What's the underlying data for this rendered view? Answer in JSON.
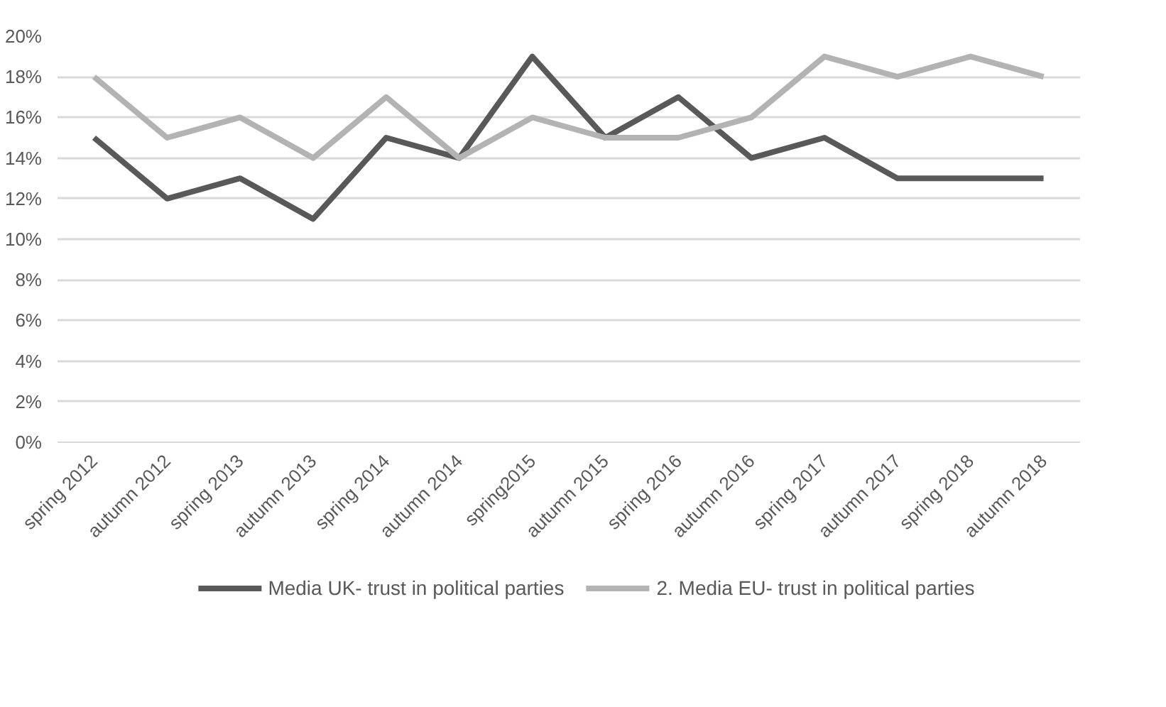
{
  "chart_data": {
    "type": "line",
    "categories": [
      "spring 2012",
      "autumn 2012",
      "spring 2013",
      "autumn 2013",
      "spring 2014",
      "autumn 2014",
      "spring2015",
      "autumn 2015",
      "spring 2016",
      "autumn 2016",
      "spring 2017",
      "autumn 2017",
      "spring 2018",
      "autumn 2018"
    ],
    "series": [
      {
        "name": "Media UK- trust in political parties",
        "color": "#595959",
        "values": [
          15,
          12,
          13,
          11,
          15,
          14,
          19,
          15,
          17,
          14,
          15,
          13,
          13,
          13
        ]
      },
      {
        "name": "2. Media EU- trust in political parties",
        "color": "#b3b3b3",
        "values": [
          18,
          15,
          16,
          14,
          17,
          14,
          16,
          15,
          15,
          16,
          19,
          18,
          19,
          18
        ]
      }
    ],
    "ylim": [
      0,
      20
    ],
    "yticks": [
      {
        "value": 0,
        "label": "0%"
      },
      {
        "value": 2,
        "label": "2%"
      },
      {
        "value": 4,
        "label": "4%"
      },
      {
        "value": 6,
        "label": "6%"
      },
      {
        "value": 8,
        "label": "8%"
      },
      {
        "value": 10,
        "label": "10%"
      },
      {
        "value": 12,
        "label": "12%"
      },
      {
        "value": 14,
        "label": "14%"
      },
      {
        "value": 16,
        "label": "16%"
      },
      {
        "value": 18,
        "label": "18%"
      },
      {
        "value": 20,
        "label": "20%"
      }
    ],
    "grid": "y",
    "legend": "bottom",
    "marker": "none",
    "line_style": "solid"
  }
}
